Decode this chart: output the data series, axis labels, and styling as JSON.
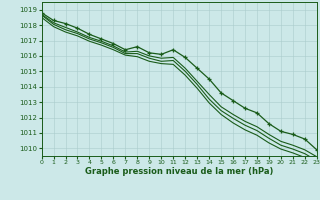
{
  "title": "Graphe pression niveau de la mer (hPa)",
  "bg_color": "#cce8e8",
  "grid_color_major": "#aacccc",
  "grid_color_minor": "#ccdddd",
  "line_color": "#1a5c1a",
  "xlim": [
    0,
    23
  ],
  "ylim": [
    1009.5,
    1019.5
  ],
  "yticks": [
    1010,
    1011,
    1012,
    1013,
    1014,
    1015,
    1016,
    1017,
    1018,
    1019
  ],
  "xticks": [
    0,
    1,
    2,
    3,
    4,
    5,
    6,
    7,
    8,
    9,
    10,
    11,
    12,
    13,
    14,
    15,
    16,
    17,
    18,
    19,
    20,
    21,
    22,
    23
  ],
  "series": [
    {
      "x": [
        0,
        1,
        2,
        3,
        4,
        5,
        6,
        7,
        8,
        9,
        10,
        11,
        12,
        13,
        14,
        15,
        16,
        17,
        18,
        19,
        20,
        21,
        22,
        23
      ],
      "y": [
        1018.8,
        1018.3,
        1018.1,
        1017.8,
        1017.4,
        1017.1,
        1016.8,
        1016.4,
        1016.6,
        1016.2,
        1016.1,
        1016.4,
        1015.9,
        1015.2,
        1014.5,
        1013.6,
        1013.1,
        1012.6,
        1012.3,
        1011.6,
        1011.1,
        1010.9,
        1010.6,
        1009.9
      ],
      "marker": "+",
      "lw": 0.9
    },
    {
      "x": [
        0,
        1,
        2,
        3,
        4,
        5,
        6,
        7,
        8,
        9,
        10,
        11,
        12,
        13,
        14,
        15,
        16,
        17,
        18,
        19,
        20,
        21,
        22,
        23
      ],
      "y": [
        1018.7,
        1018.15,
        1017.85,
        1017.55,
        1017.2,
        1016.95,
        1016.65,
        1016.25,
        1016.3,
        1016.0,
        1015.85,
        1015.9,
        1015.2,
        1014.35,
        1013.5,
        1012.7,
        1012.2,
        1011.75,
        1011.4,
        1010.9,
        1010.45,
        1010.2,
        1009.9,
        1009.45
      ],
      "marker": null,
      "lw": 0.8
    },
    {
      "x": [
        0,
        1,
        2,
        3,
        4,
        5,
        6,
        7,
        8,
        9,
        10,
        11,
        12,
        13,
        14,
        15,
        16,
        17,
        18,
        19,
        20,
        21,
        22,
        23
      ],
      "y": [
        1018.65,
        1018.05,
        1017.7,
        1017.45,
        1017.1,
        1016.85,
        1016.55,
        1016.15,
        1016.15,
        1015.85,
        1015.65,
        1015.7,
        1015.0,
        1014.15,
        1013.2,
        1012.45,
        1011.95,
        1011.5,
        1011.15,
        1010.65,
        1010.2,
        1009.95,
        1009.65,
        1009.2
      ],
      "marker": null,
      "lw": 0.8
    },
    {
      "x": [
        0,
        1,
        2,
        3,
        4,
        5,
        6,
        7,
        8,
        9,
        10,
        11,
        12,
        13,
        14,
        15,
        16,
        17,
        18,
        19,
        20,
        21,
        22,
        23
      ],
      "y": [
        1018.5,
        1017.9,
        1017.55,
        1017.3,
        1016.95,
        1016.7,
        1016.4,
        1016.05,
        1015.95,
        1015.65,
        1015.5,
        1015.45,
        1014.75,
        1013.9,
        1012.95,
        1012.2,
        1011.65,
        1011.2,
        1010.85,
        1010.35,
        1009.95,
        1009.7,
        1009.4,
        1008.95
      ],
      "marker": null,
      "lw": 0.8
    }
  ]
}
